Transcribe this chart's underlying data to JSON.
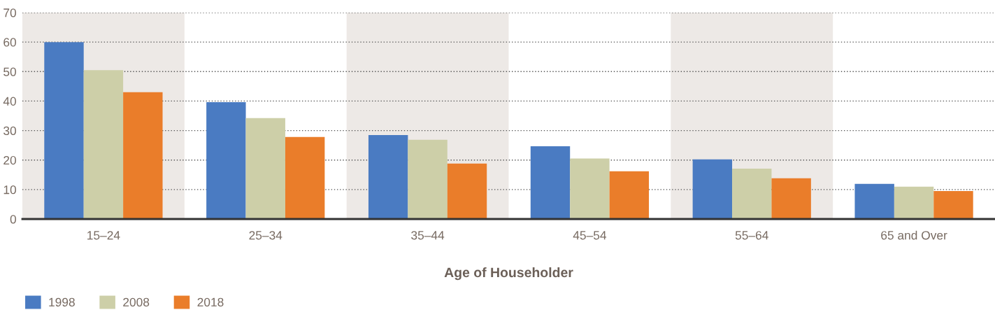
{
  "chart_data": {
    "type": "bar",
    "xlabel": "Age of Householder",
    "categories": [
      "15–24",
      "25–34",
      "35–44",
      "45–54",
      "55–64",
      "65 and Over"
    ],
    "series": [
      {
        "name": "1998",
        "color": "#4a7bc2",
        "values": [
          60.0,
          39.6,
          28.5,
          24.7,
          20.2,
          11.9
        ]
      },
      {
        "name": "2008",
        "color": "#cdcfa8",
        "values": [
          50.5,
          34.2,
          26.9,
          20.5,
          17.1,
          11.0
        ]
      },
      {
        "name": "2018",
        "color": "#ea7d2a",
        "values": [
          43.0,
          27.8,
          18.8,
          16.2,
          13.8,
          9.5
        ]
      }
    ],
    "ylim": [
      0,
      70
    ],
    "yticks": [
      0,
      10,
      20,
      30,
      40,
      50,
      60,
      70
    ],
    "bands": [
      {
        "axis": "x",
        "from": "15–24",
        "to": "15–24",
        "color": "#ede9e6"
      },
      {
        "axis": "x",
        "from": "35–44",
        "to": "35–44",
        "color": "#ede9e6"
      },
      {
        "axis": "x",
        "from": "55–64",
        "to": "55–64",
        "color": "#ede9e6"
      }
    ],
    "grid": "y",
    "legend": "bottom left"
  }
}
